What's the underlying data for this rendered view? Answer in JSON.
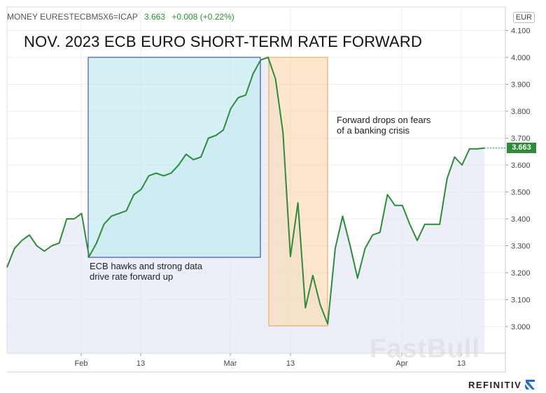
{
  "ticker": {
    "symbol": "MONEY EURESTECBM5X6=ICAP",
    "value": "3.663",
    "change": "+0.008 (+0.22%)"
  },
  "title": "NOV. 2023 ECB EURO SHORT-TERM RATE FORWARD",
  "currency_badge": "EUR",
  "last_value_badge": "3.663",
  "watermark": "FastBull",
  "brand": "REFINITIV",
  "colors": {
    "line": "#2e8b3a",
    "box_blue": "#bfe9f0",
    "box_blue_border": "#1f3a9c",
    "box_orange": "#fcd9b4",
    "box_orange_border": "#e8a24a"
  },
  "annotations": {
    "hawks": [
      "ECB hawks and strong data",
      "drive rate forward up"
    ],
    "crisis": [
      "Forward drops on fears",
      "of a banking crisis"
    ]
  },
  "chart_data": {
    "type": "line",
    "title": "NOV. 2023 ECB EURO SHORT-TERM RATE FORWARD",
    "xlabel": "",
    "ylabel": "",
    "ylim": [
      2.89,
      4.15
    ],
    "y_ticks": [
      "3.000",
      "3.100",
      "3.200",
      "3.300",
      "3.400",
      "3.500",
      "3.600",
      "3.700",
      "3.800",
      "3.900",
      "4.000",
      "4.100"
    ],
    "x_tick_labels": [
      "Feb",
      "13",
      "Mar",
      "13",
      "Apr",
      "13"
    ],
    "grid": true,
    "series": [
      {
        "values": [
          3.22,
          3.29,
          3.32,
          3.34,
          3.3,
          3.28,
          3.3,
          3.31,
          3.4,
          3.4,
          3.42,
          3.26,
          3.31,
          3.38,
          3.41,
          3.42,
          3.43,
          3.49,
          3.51,
          3.56,
          3.57,
          3.56,
          3.57,
          3.6,
          3.64,
          3.62,
          3.63,
          3.7,
          3.71,
          3.73,
          3.81,
          3.85,
          3.86,
          3.94,
          3.99,
          4.0,
          3.92,
          3.72,
          3.26,
          3.46,
          3.07,
          3.19,
          3.08,
          3.01,
          3.29,
          3.41,
          3.3,
          3.18,
          3.29,
          3.34,
          3.35,
          3.49,
          3.45,
          3.45,
          3.38,
          3.32,
          3.38,
          3.38,
          3.38,
          3.55,
          3.63,
          3.6,
          3.66,
          3.66,
          3.663
        ]
      }
    ]
  }
}
